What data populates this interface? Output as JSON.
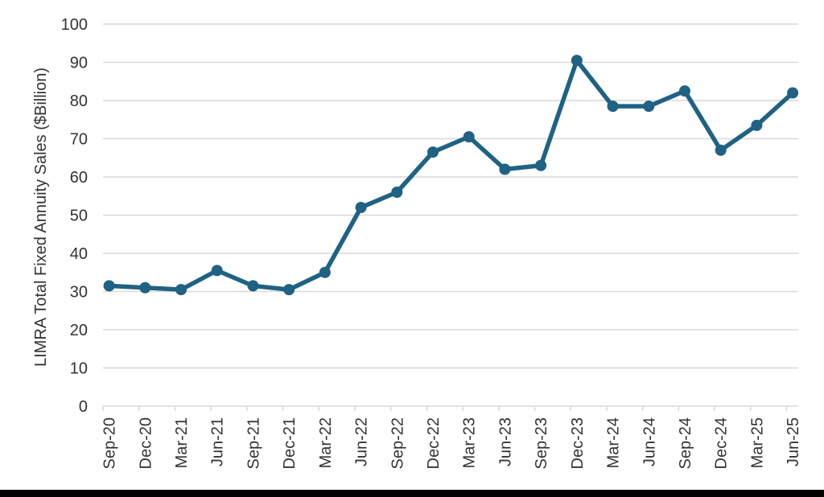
{
  "page": {
    "background": "#FFFFFF",
    "footer_bar_color": "#000000"
  },
  "chart_data": {
    "type": "line",
    "title": "",
    "xlabel": "",
    "ylabel": "LIMRA Total Fixed Annuity Sales ($Billion)",
    "categories": [
      "Sep-20",
      "Dec-20",
      "Mar-21",
      "Jun-21",
      "Sep-21",
      "Dec-21",
      "Mar-22",
      "Jun-22",
      "Sep-22",
      "Dec-22",
      "Mar-23",
      "Jun-23",
      "Sep-23",
      "Dec-23",
      "Mar-24",
      "Jun-24",
      "Sep-24",
      "Dec-24",
      "Mar-25",
      "Jun-25"
    ],
    "series": [
      {
        "name": "LIMRA Total Fixed Annuity Sales",
        "values": [
          31.5,
          31,
          30.5,
          35.5,
          31.5,
          30.5,
          35,
          52,
          56,
          66.5,
          70.5,
          62,
          63,
          90.5,
          78.5,
          78.5,
          82.5,
          67,
          73.5,
          82
        ]
      }
    ],
    "ylim": [
      0,
      100
    ],
    "y_ticks": [
      0,
      10,
      20,
      30,
      40,
      50,
      60,
      70,
      80,
      90,
      100
    ],
    "grid": true,
    "legend_position": "none",
    "marker": "circle",
    "colors": {
      "line": "#1F6283",
      "marker": "#1F6283",
      "gridline": "#D9D9D9",
      "axis": "#D9D9D9",
      "tick_label": "#333333",
      "axis_title": "#333333"
    }
  }
}
